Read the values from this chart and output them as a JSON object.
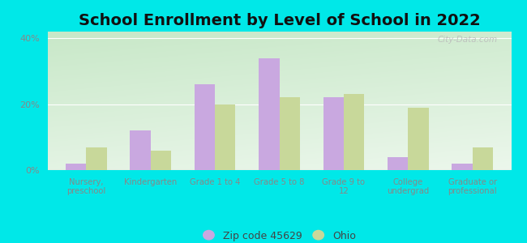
{
  "title": "School Enrollment by Level of School in 2022",
  "categories": [
    "Nursery,\npreschool",
    "Kindergarten",
    "Grade 1 to 4",
    "Grade 5 to 8",
    "Grade 9 to\n12",
    "College\nundergrad",
    "Graduate or\nprofessional"
  ],
  "zip_values": [
    2,
    12,
    26,
    34,
    22,
    4,
    2
  ],
  "ohio_values": [
    7,
    6,
    20,
    22,
    23,
    19,
    7
  ],
  "zip_color": "#c9a8e0",
  "ohio_color": "#c8d89a",
  "background_color": "#00e8e8",
  "plot_bg_topleft": "#c8e8c8",
  "plot_bg_bottomright": "#ffffff",
  "title_fontsize": 14,
  "ylabel_ticks": [
    "0%",
    "20%",
    "40%"
  ],
  "yticks": [
    0,
    20,
    40
  ],
  "ylim": [
    0,
    42
  ],
  "legend_zip_label": "Zip code 45629",
  "legend_ohio_label": "Ohio",
  "watermark": "City-Data.com",
  "tick_color": "#888888",
  "bar_width": 0.32
}
